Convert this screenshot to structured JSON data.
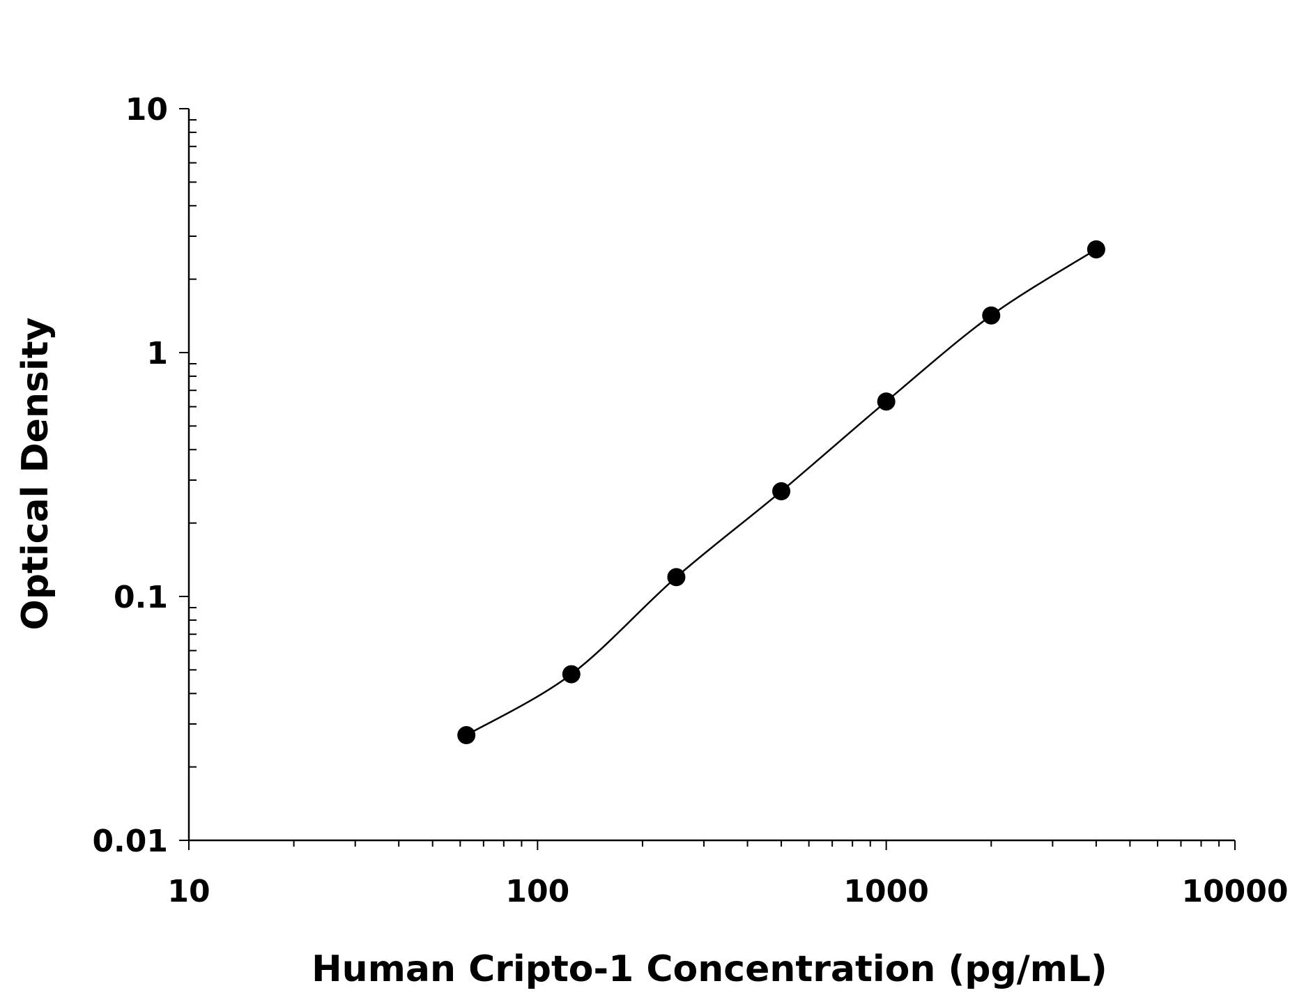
{
  "chart_data": {
    "type": "scatter",
    "title": "",
    "xlabel": "Human Cripto-1 Concentration (pg/mL)",
    "ylabel": "Optical Density",
    "x_scale": "log",
    "y_scale": "log",
    "xlim": [
      10,
      10000
    ],
    "ylim": [
      0.01,
      10
    ],
    "x_ticks": [
      "10",
      "100",
      "1000",
      "10000"
    ],
    "y_ticks": [
      "0.01",
      "0.1",
      "1",
      "10"
    ],
    "grid": false,
    "legend": "none",
    "series": [
      {
        "points": [
          {
            "x": 62.5,
            "y": 0.027
          },
          {
            "x": 125,
            "y": 0.048
          },
          {
            "x": 250,
            "y": 0.12
          },
          {
            "x": 500,
            "y": 0.27
          },
          {
            "x": 1000,
            "y": 0.63
          },
          {
            "x": 2000,
            "y": 1.42
          },
          {
            "x": 4000,
            "y": 2.65
          }
        ],
        "fit": "smooth curve through points",
        "color": "#000000"
      }
    ]
  }
}
